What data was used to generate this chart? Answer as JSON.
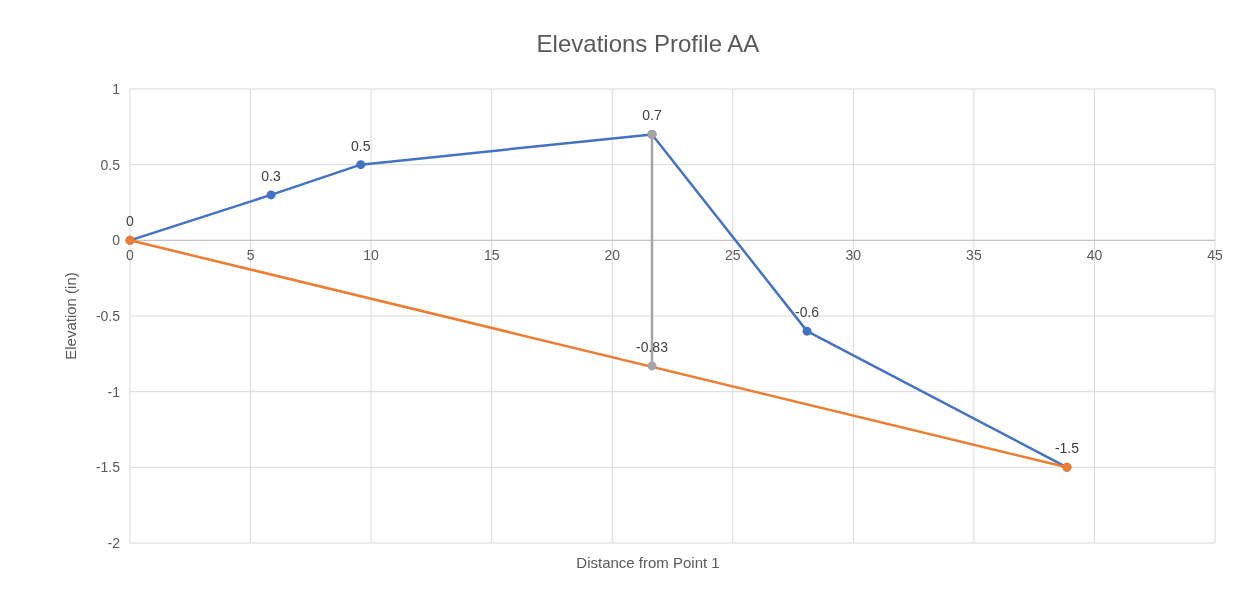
{
  "chart_data": {
    "type": "line",
    "title": "Elevations Profile AA",
    "xlabel": "Distance from Point 1",
    "ylabel": "Elevation (in)",
    "xlim": [
      0,
      45
    ],
    "xticks": [
      0,
      5,
      10,
      15,
      20,
      25,
      30,
      35,
      40,
      45
    ],
    "ylim": [
      -2,
      1
    ],
    "yticks": [
      -2,
      -1.5,
      -1,
      -0.5,
      0,
      0.5,
      1
    ],
    "grid": true,
    "marker": "circle",
    "line_style": "solid",
    "series": [
      {
        "color": "#4472c4",
        "x": [
          0,
          5.85,
          9.57,
          21.65,
          28.08,
          38.86
        ],
        "values": [
          0,
          0.3,
          0.5,
          0.7,
          -0.6,
          -1.5
        ],
        "value_labels": [
          "0",
          "0.3",
          "0.5",
          "0.7",
          "-0.6",
          "-1.5"
        ]
      },
      {
        "color": "#ed7d31",
        "x": [
          0,
          38.86
        ],
        "values": [
          0,
          -1.5
        ],
        "value_labels": [
          null,
          null
        ]
      },
      {
        "color": "#a5a5a5",
        "x": [
          21.65,
          21.65
        ],
        "values": [
          0.7,
          -0.83
        ],
        "value_labels": [
          null,
          "-0.83"
        ]
      }
    ]
  }
}
